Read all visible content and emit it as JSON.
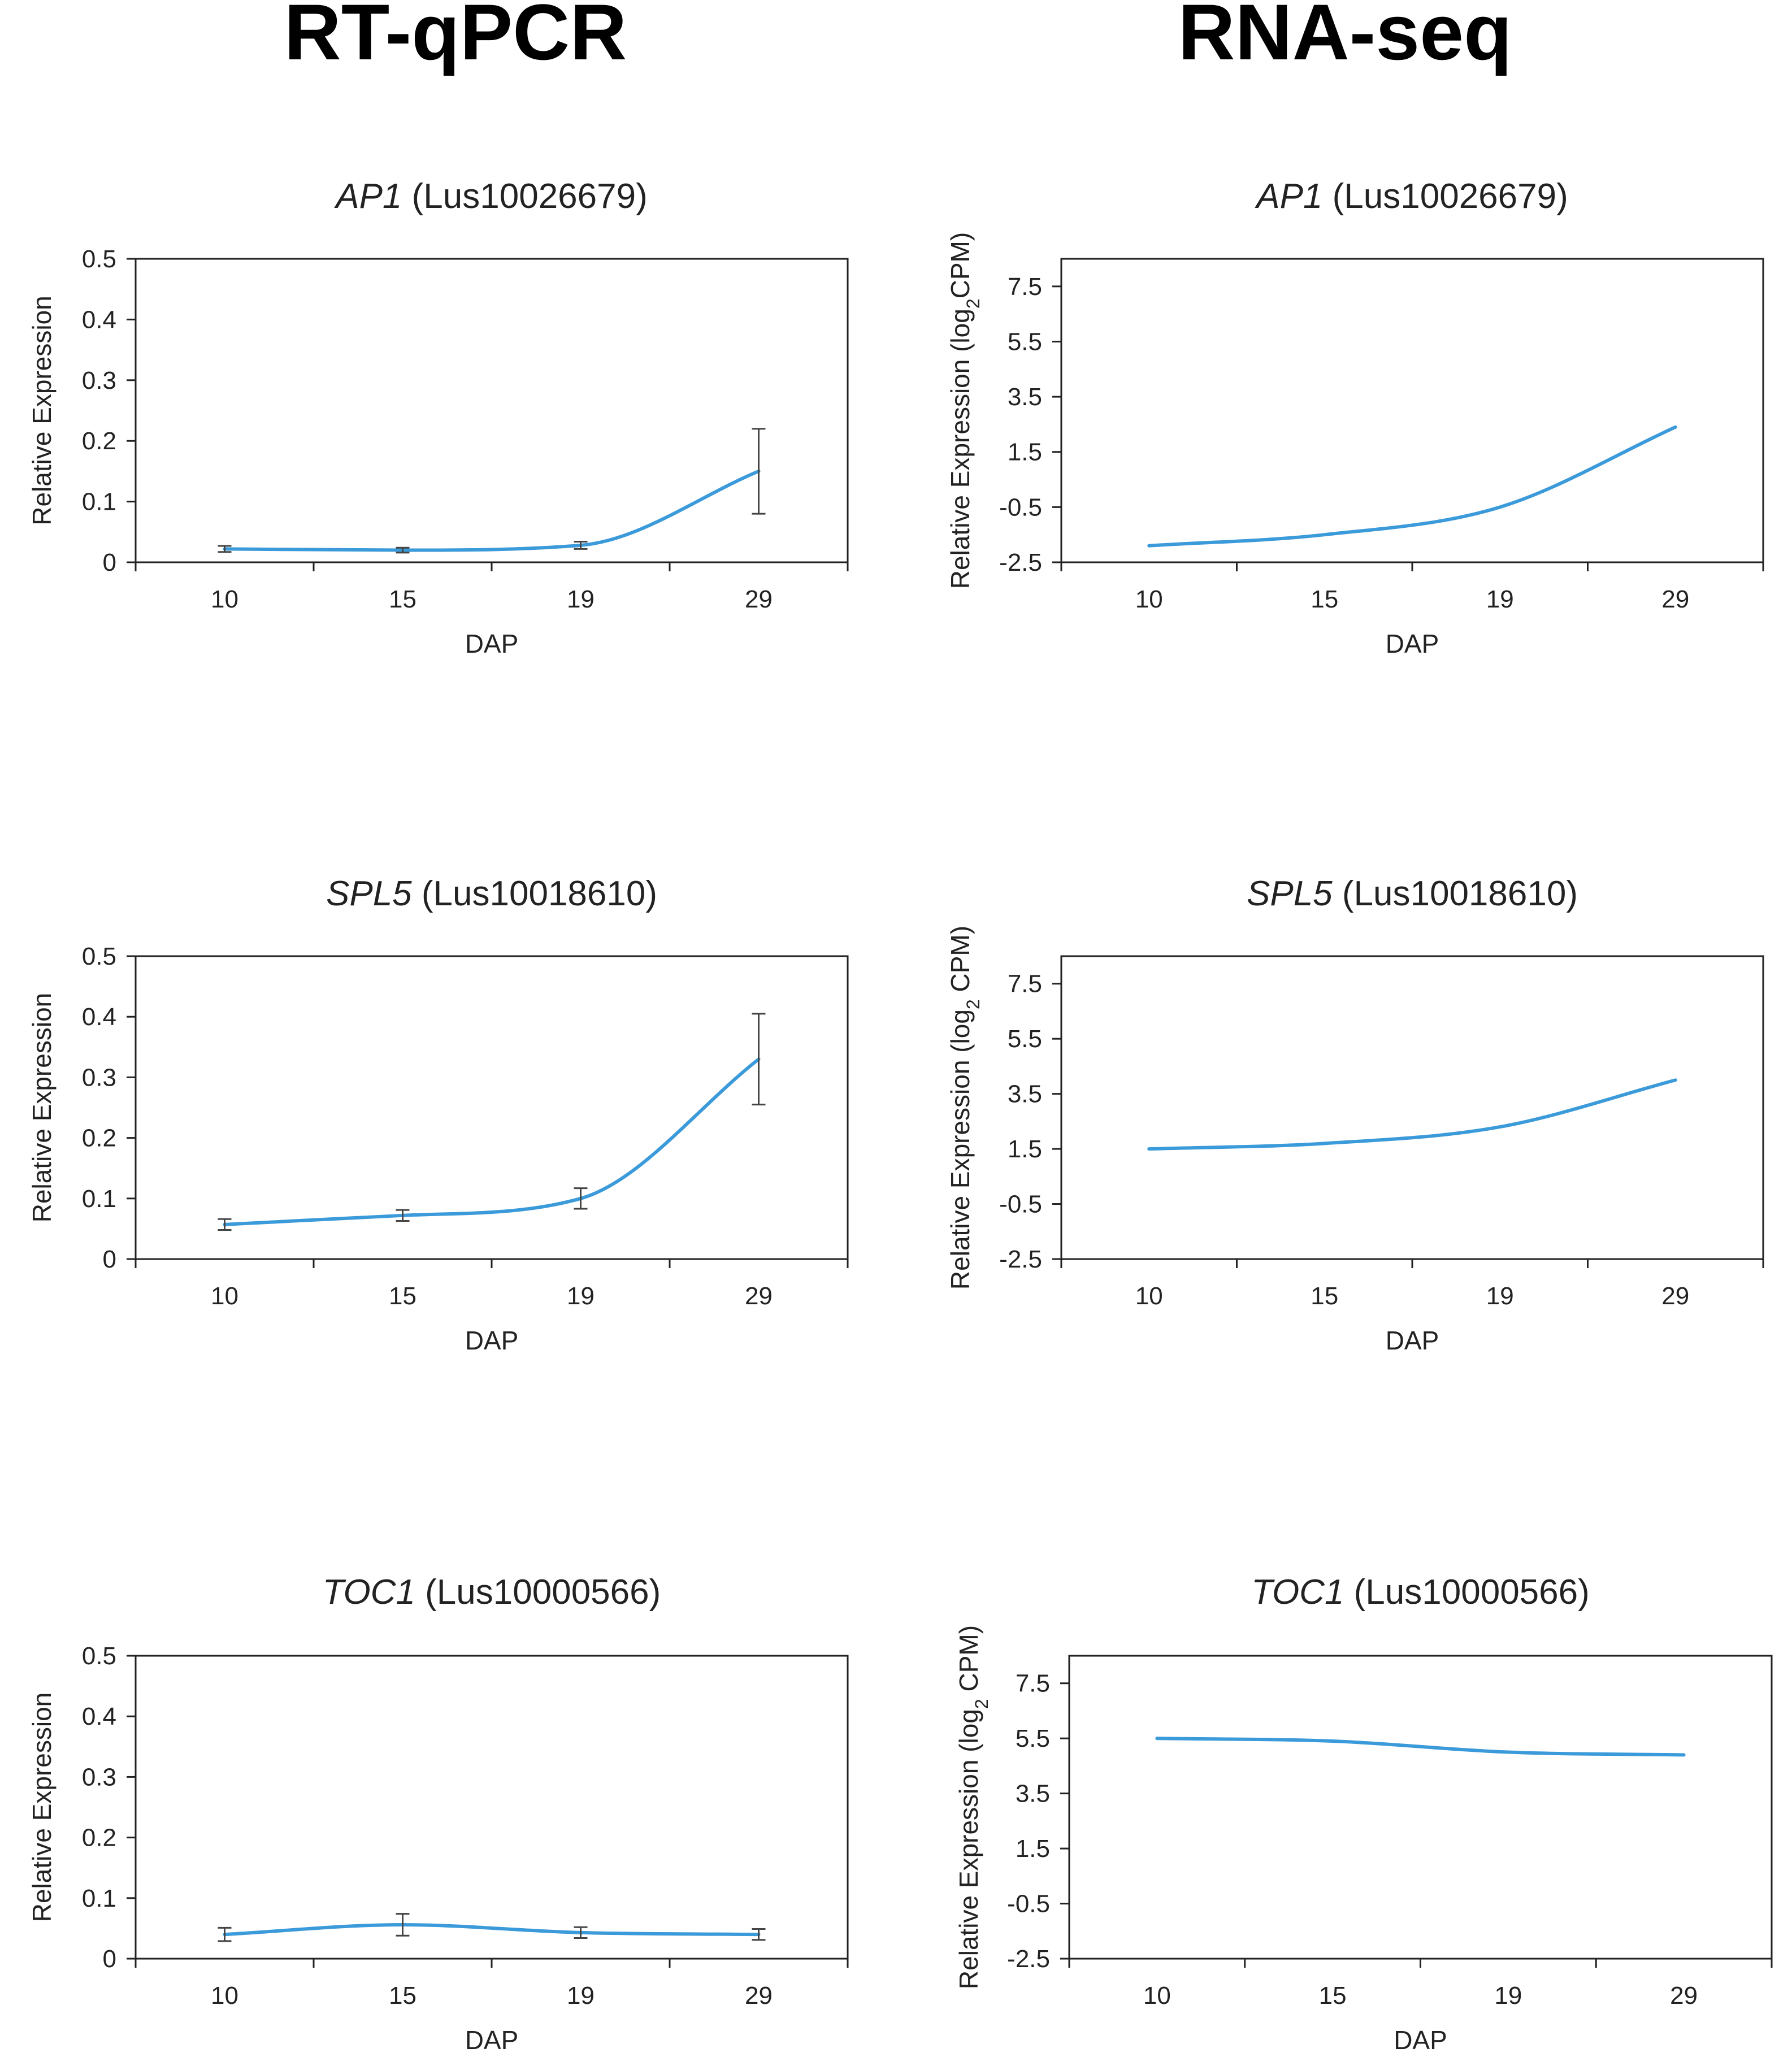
{
  "column_titles": [
    "RT-qPCR",
    "RNA-seq"
  ],
  "chart_data": [
    {
      "type": "line",
      "panel": "RT-qPCR",
      "title_gene": "AP1",
      "title_id": " (Lus10026679)",
      "xlabel": "DAP",
      "ylabel": "Relative Expression",
      "categories": [
        "10",
        "15",
        "19",
        "29"
      ],
      "series": [
        {
          "name": "AP1",
          "values": [
            0.022,
            0.02,
            0.028,
            0.15
          ],
          "errors": [
            0.005,
            0.004,
            0.006,
            0.07
          ]
        }
      ],
      "ylim": [
        0,
        0.5
      ],
      "yticks": [
        0,
        0.1,
        0.2,
        0.3,
        0.4,
        0.5
      ],
      "ytick_labels": [
        "0",
        "0.1",
        "0.2",
        "0.3",
        "0.4",
        "0.5"
      ],
      "grid": false
    },
    {
      "type": "line",
      "panel": "RNA-seq",
      "title_gene": "AP1",
      "title_id": " (Lus10026679)",
      "xlabel": "DAP",
      "ylabel": "Relative Expression (log",
      "ylabel_sub": "2",
      "ylabel_end": "CPM)",
      "categories": [
        "10",
        "15",
        "19",
        "29"
      ],
      "series": [
        {
          "name": "AP1",
          "values": [
            -1.9,
            -1.5,
            -0.5,
            2.4
          ]
        }
      ],
      "ylim": [
        -2.5,
        8.5
      ],
      "yticks": [
        -2.5,
        -0.5,
        1.5,
        3.5,
        5.5,
        7.5
      ],
      "ytick_labels": [
        "-2.5",
        "-0.5",
        "1.5",
        "3.5",
        "5.5",
        "7.5"
      ],
      "grid": false
    },
    {
      "type": "line",
      "panel": "RT-qPCR",
      "title_gene": "SPL5",
      "title_id": " (Lus10018610)",
      "xlabel": "DAP",
      "ylabel": "Relative Expression",
      "categories": [
        "10",
        "15",
        "19",
        "29"
      ],
      "series": [
        {
          "name": "SPL5",
          "values": [
            0.057,
            0.072,
            0.1,
            0.33
          ],
          "errors": [
            0.009,
            0.009,
            0.017,
            0.075
          ]
        }
      ],
      "ylim": [
        0,
        0.5
      ],
      "yticks": [
        0,
        0.1,
        0.2,
        0.3,
        0.4,
        0.5
      ],
      "ytick_labels": [
        "0",
        "0.1",
        "0.2",
        "0.3",
        "0.4",
        "0.5"
      ],
      "grid": false
    },
    {
      "type": "line",
      "panel": "RNA-seq",
      "title_gene": "SPL5",
      "title_id": " (Lus10018610)",
      "xlabel": "DAP",
      "ylabel": "Relative Expression (log",
      "ylabel_sub": "2",
      "ylabel_end": " CPM)",
      "categories": [
        "10",
        "15",
        "19",
        "29"
      ],
      "series": [
        {
          "name": "SPL5",
          "values": [
            1.5,
            1.7,
            2.3,
            4.0
          ]
        }
      ],
      "ylim": [
        -2.5,
        8.5
      ],
      "yticks": [
        -2.5,
        -0.5,
        1.5,
        3.5,
        5.5,
        7.5
      ],
      "ytick_labels": [
        "-2.5",
        "-0.5",
        "1.5",
        "3.5",
        "5.5",
        "7.5"
      ],
      "grid": false
    },
    {
      "type": "line",
      "panel": "RT-qPCR",
      "title_gene": "TOC1",
      "title_id": " (Lus10000566)",
      "xlabel": "DAP",
      "ylabel": "Relative Expression",
      "categories": [
        "10",
        "15",
        "19",
        "29"
      ],
      "series": [
        {
          "name": "TOC1",
          "values": [
            0.04,
            0.056,
            0.043,
            0.04
          ],
          "errors": [
            0.011,
            0.018,
            0.009,
            0.009
          ]
        }
      ],
      "ylim": [
        0,
        0.5
      ],
      "yticks": [
        0,
        0.1,
        0.2,
        0.3,
        0.4,
        0.5
      ],
      "ytick_labels": [
        "0",
        "0.1",
        "0.2",
        "0.3",
        "0.4",
        "0.5"
      ],
      "grid": false
    },
    {
      "type": "line",
      "panel": "RNA-seq",
      "title_gene": "TOC1",
      "title_id": " (Lus10000566)",
      "xlabel": "DAP",
      "ylabel": "Relative Expression (log",
      "ylabel_sub": "2",
      "ylabel_end": " CPM)",
      "categories": [
        "10",
        "15",
        "19",
        "29"
      ],
      "series": [
        {
          "name": "TOC1",
          "values": [
            5.5,
            5.4,
            5.0,
            4.9
          ]
        }
      ],
      "ylim": [
        -2.5,
        8.5
      ],
      "yticks": [
        -2.5,
        -0.5,
        1.5,
        3.5,
        5.5,
        7.5
      ],
      "ytick_labels": [
        "-2.5",
        "-0.5",
        "1.5",
        "3.5",
        "5.5",
        "7.5"
      ],
      "grid": false
    }
  ],
  "colors": {
    "line": "#3b9ad9",
    "error_bar": "#444444",
    "axis": "#222222",
    "frame": "#222222"
  }
}
